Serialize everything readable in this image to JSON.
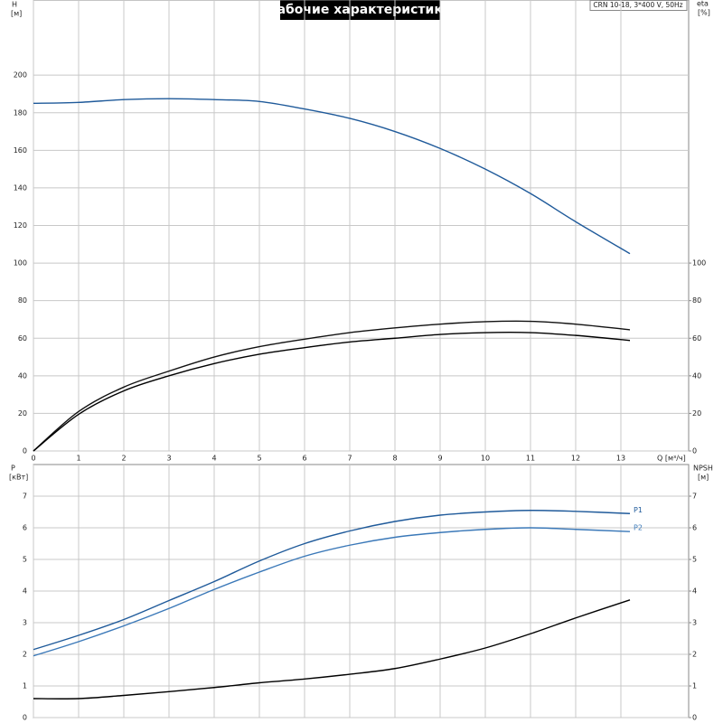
{
  "chart_data": [
    {
      "type": "line",
      "title": "Рабочие характеристики",
      "subtitle": "CRN 10-18, 3*400 V, 50Hz",
      "y_label": "H",
      "y_unit": "[м]",
      "y2_label": "eta",
      "y2_unit": "[%]",
      "x_label": "Q [м³/ч]",
      "x": [
        0,
        1,
        2,
        3,
        4,
        5,
        6,
        7,
        8,
        9,
        10,
        11,
        12,
        13.2
      ],
      "xlim": [
        0,
        14.5
      ],
      "xticks": [
        0,
        1,
        2,
        3,
        4,
        5,
        6,
        7,
        8,
        9,
        10,
        11,
        12,
        13
      ],
      "ylim": [
        0,
        240
      ],
      "yticks": [
        0,
        20,
        40,
        60,
        80,
        100,
        120,
        140,
        160,
        180,
        200
      ],
      "y2lim": [
        0,
        240
      ],
      "y2ticks": [
        0,
        20,
        40,
        60,
        80,
        100
      ],
      "grid": true,
      "series": [
        {
          "color": "#1f5a9a",
          "values": [
            185,
            185.5,
            187,
            187.5,
            187,
            186,
            182,
            177,
            170,
            161,
            150,
            137,
            122,
            105
          ]
        },
        {
          "color": "#111111",
          "axis": "y2",
          "values": [
            0,
            21,
            34,
            42.5,
            50,
            55.5,
            59.5,
            63,
            65.5,
            67.5,
            68.8,
            69,
            67.5,
            64.5
          ]
        },
        {
          "color": "#000000",
          "axis": "y2",
          "values": [
            0,
            19.5,
            32,
            40,
            46.5,
            51.5,
            55,
            58,
            60,
            62,
            63,
            63,
            61.5,
            58.8
          ]
        }
      ]
    },
    {
      "type": "line",
      "y_label": "P",
      "y_unit": "[кВт]",
      "y2_label": "NPSH",
      "y2_unit": "[м]",
      "x": [
        0,
        1,
        2,
        3,
        4,
        5,
        6,
        7,
        8,
        9,
        10,
        11,
        12,
        13.2
      ],
      "xlim": [
        0,
        14.5
      ],
      "ylim": [
        0,
        8
      ],
      "yticks": [
        0,
        1,
        2,
        3,
        4,
        5,
        6,
        7
      ],
      "y2lim": [
        0,
        8
      ],
      "y2ticks": [
        0,
        1,
        2,
        3,
        4,
        5,
        6,
        7
      ],
      "grid": true,
      "series": [
        {
          "name": "P1",
          "color": "#1f5a9a",
          "values": [
            2.15,
            2.6,
            3.1,
            3.7,
            4.3,
            4.95,
            5.5,
            5.9,
            6.2,
            6.4,
            6.5,
            6.55,
            6.52,
            6.45
          ]
        },
        {
          "name": "P2",
          "color": "#3a78b8",
          "values": [
            1.95,
            2.4,
            2.9,
            3.45,
            4.05,
            4.6,
            5.1,
            5.45,
            5.7,
            5.85,
            5.95,
            6.0,
            5.95,
            5.88
          ]
        },
        {
          "color": "#000000",
          "axis": "y2",
          "values": [
            0.6,
            0.6,
            0.7,
            0.82,
            0.95,
            1.1,
            1.22,
            1.37,
            1.55,
            1.85,
            2.2,
            2.65,
            3.15,
            3.72
          ]
        }
      ]
    }
  ]
}
